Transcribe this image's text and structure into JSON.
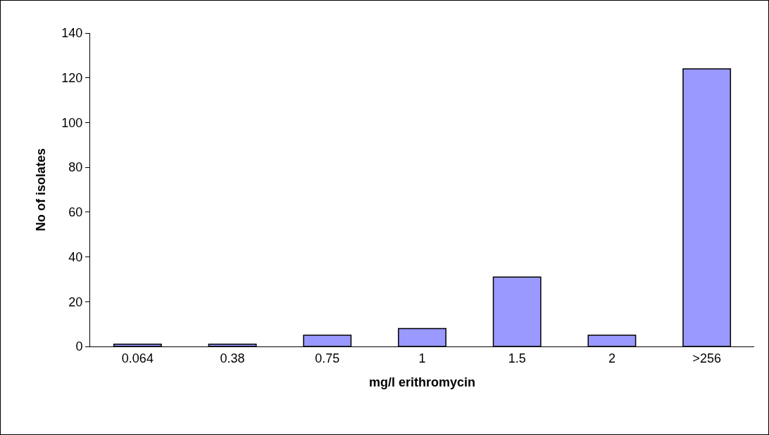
{
  "chart_data": {
    "type": "bar",
    "xlabel": "mg/l erithromycin",
    "ylabel": "No of isolates",
    "categories": [
      "0.064",
      "0.38",
      "0.75",
      "1",
      "1.5",
      "2",
      ">256"
    ],
    "values": [
      1,
      1,
      5,
      8,
      31,
      5,
      124
    ],
    "color": "#9999ff",
    "ylim": [
      0,
      140
    ],
    "yticks": [
      0,
      20,
      40,
      60,
      80,
      100,
      120,
      140
    ],
    "grid": false
  }
}
